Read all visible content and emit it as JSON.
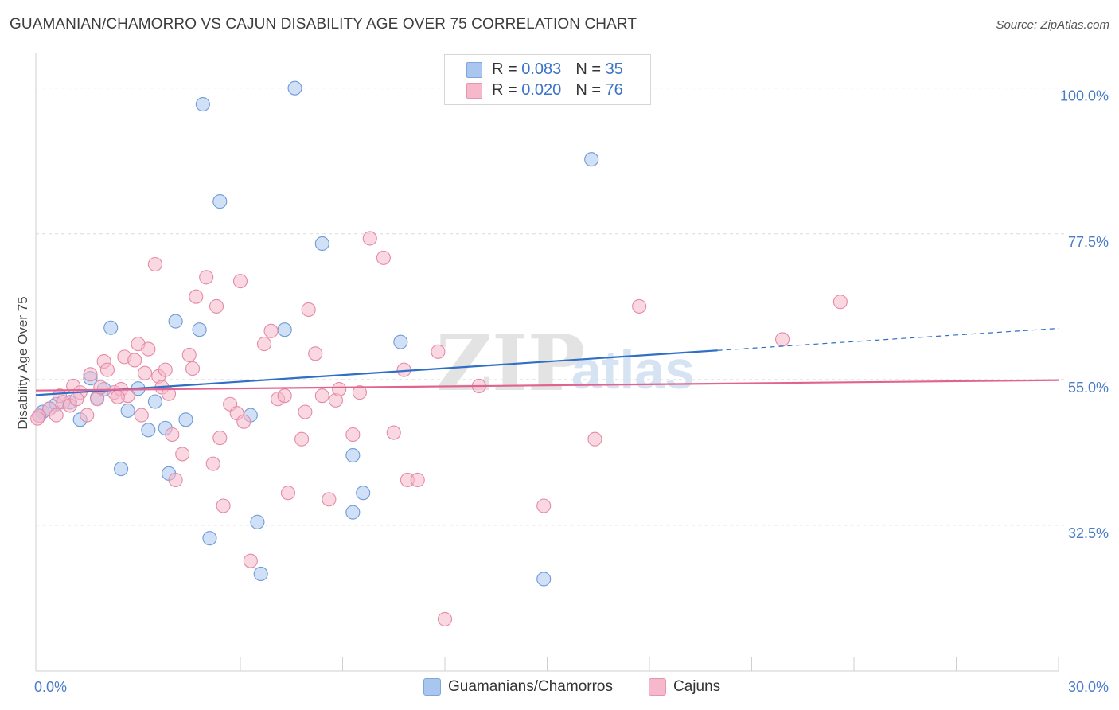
{
  "header": {
    "title": "GUAMANIAN/CHAMORRO VS CAJUN DISABILITY AGE OVER 75 CORRELATION CHART",
    "source": "Source: ZipAtlas.com"
  },
  "legend": {
    "rows": [
      {
        "r_label": "R =",
        "r_value": "0.083",
        "n_label": "N =",
        "n_value": "35",
        "color": "#a9c6ee"
      },
      {
        "r_label": "R =",
        "r_value": "0.020",
        "n_label": "N =",
        "n_value": "76",
        "color": "#f6b8cb"
      }
    ]
  },
  "bottom_legend": {
    "items": [
      {
        "label": "Guamanians/Chamorros",
        "color": "#a9c6ee"
      },
      {
        "label": "Cajuns",
        "color": "#f6b8cb"
      }
    ]
  },
  "watermark": {
    "zip": "ZIP",
    "atlas": "atlas"
  },
  "chart_data": {
    "type": "scatter",
    "ylabel": "Disability Age Over 75",
    "xlim": [
      0,
      30
    ],
    "ylim": [
      10,
      105
    ],
    "x_tick_labels": [
      {
        "value": 0,
        "label": "0.0%"
      },
      {
        "value": 30,
        "label": "30.0%"
      }
    ],
    "x_minor_ticks": [
      3,
      6,
      9,
      12,
      15,
      18,
      21,
      24,
      27,
      30
    ],
    "y_ticks": [
      {
        "value": 100,
        "label": "100.0%"
      },
      {
        "value": 77.5,
        "label": "77.5%"
      },
      {
        "value": 55,
        "label": "55.0%"
      },
      {
        "value": 32.5,
        "label": "32.5%"
      }
    ],
    "grid": "horizontal-dashed",
    "series": [
      {
        "name": "Guamanians/Chamorros",
        "color": "#a9c6ee",
        "stroke": "#6f9bd8",
        "trend_color": "#2f6fc6",
        "trend": {
          "x0": 0,
          "y0": 52.6,
          "x1": 20,
          "y1": 59.5,
          "dash_to_x": 30,
          "dash_to_y": 62.9
        },
        "points": [
          [
            0.2,
            50.0
          ],
          [
            0.4,
            50.5
          ],
          [
            0.6,
            51.2
          ],
          [
            1.0,
            51.5
          ],
          [
            1.3,
            48.8
          ],
          [
            1.6,
            55.2
          ],
          [
            1.8,
            52.2
          ],
          [
            2.0,
            53.5
          ],
          [
            2.2,
            63.0
          ],
          [
            2.5,
            41.2
          ],
          [
            2.7,
            50.2
          ],
          [
            3.0,
            53.6
          ],
          [
            3.3,
            47.2
          ],
          [
            3.5,
            51.6
          ],
          [
            3.8,
            47.5
          ],
          [
            3.9,
            40.5
          ],
          [
            4.1,
            64.0
          ],
          [
            4.4,
            48.8
          ],
          [
            4.8,
            62.7
          ],
          [
            4.9,
            97.5
          ],
          [
            5.1,
            30.5
          ],
          [
            5.4,
            82.5
          ],
          [
            6.3,
            49.5
          ],
          [
            6.5,
            33.0
          ],
          [
            6.6,
            25.0
          ],
          [
            7.3,
            62.7
          ],
          [
            7.6,
            100.0
          ],
          [
            8.4,
            76.0
          ],
          [
            9.3,
            43.3
          ],
          [
            9.3,
            34.5
          ],
          [
            9.6,
            37.5
          ],
          [
            10.7,
            60.8
          ],
          [
            14.9,
            24.2
          ],
          [
            16.3,
            89.0
          ],
          [
            0.1,
            49.4
          ]
        ]
      },
      {
        "name": "Cajuns",
        "color": "#f6b8cb",
        "stroke": "#e58aa7",
        "trend_color": "#e0648f",
        "trend": {
          "x0": 0,
          "y0": 53.3,
          "x1": 30,
          "y1": 54.9
        },
        "points": [
          [
            0.1,
            49.4
          ],
          [
            0.4,
            50.5
          ],
          [
            0.6,
            49.5
          ],
          [
            0.7,
            52.5
          ],
          [
            0.8,
            51.5
          ],
          [
            1.0,
            51.0
          ],
          [
            1.1,
            54.0
          ],
          [
            1.3,
            53.0
          ],
          [
            1.5,
            49.5
          ],
          [
            1.6,
            55.8
          ],
          [
            1.8,
            52.0
          ],
          [
            1.9,
            53.8
          ],
          [
            2.0,
            57.8
          ],
          [
            2.1,
            56.5
          ],
          [
            2.3,
            53.0
          ],
          [
            2.5,
            53.5
          ],
          [
            2.6,
            58.5
          ],
          [
            2.7,
            52.5
          ],
          [
            2.9,
            58.0
          ],
          [
            3.0,
            60.5
          ],
          [
            3.1,
            49.5
          ],
          [
            3.2,
            56.0
          ],
          [
            3.3,
            59.7
          ],
          [
            3.5,
            72.8
          ],
          [
            3.6,
            55.5
          ],
          [
            3.7,
            53.8
          ],
          [
            3.8,
            56.5
          ],
          [
            3.9,
            52.8
          ],
          [
            4.0,
            46.5
          ],
          [
            4.1,
            39.5
          ],
          [
            4.3,
            43.5
          ],
          [
            4.5,
            58.8
          ],
          [
            4.6,
            56.7
          ],
          [
            4.7,
            67.8
          ],
          [
            5.0,
            70.8
          ],
          [
            5.2,
            42.0
          ],
          [
            5.3,
            66.3
          ],
          [
            5.4,
            46.0
          ],
          [
            5.5,
            35.5
          ],
          [
            5.7,
            51.2
          ],
          [
            5.9,
            49.8
          ],
          [
            6.0,
            70.2
          ],
          [
            6.3,
            27.0
          ],
          [
            6.7,
            60.5
          ],
          [
            6.9,
            62.5
          ],
          [
            7.1,
            52.0
          ],
          [
            7.3,
            52.5
          ],
          [
            7.4,
            37.5
          ],
          [
            7.8,
            45.8
          ],
          [
            7.9,
            50.0
          ],
          [
            8.0,
            65.8
          ],
          [
            8.2,
            59.0
          ],
          [
            8.4,
            52.5
          ],
          [
            8.6,
            36.5
          ],
          [
            8.8,
            51.8
          ],
          [
            8.9,
            53.5
          ],
          [
            9.3,
            46.5
          ],
          [
            9.5,
            53.0
          ],
          [
            9.8,
            76.8
          ],
          [
            10.2,
            73.8
          ],
          [
            10.5,
            46.8
          ],
          [
            10.8,
            56.5
          ],
          [
            10.9,
            39.5
          ],
          [
            11.2,
            39.5
          ],
          [
            11.8,
            59.3
          ],
          [
            14.9,
            35.5
          ],
          [
            12.0,
            18.0
          ],
          [
            13.0,
            54.0
          ],
          [
            16.4,
            45.8
          ],
          [
            17.7,
            66.3
          ],
          [
            21.9,
            61.2
          ],
          [
            23.6,
            67.0
          ],
          [
            0.05,
            49.0
          ],
          [
            2.4,
            52.3
          ],
          [
            1.2,
            52.0
          ],
          [
            6.1,
            48.5
          ]
        ]
      }
    ]
  }
}
